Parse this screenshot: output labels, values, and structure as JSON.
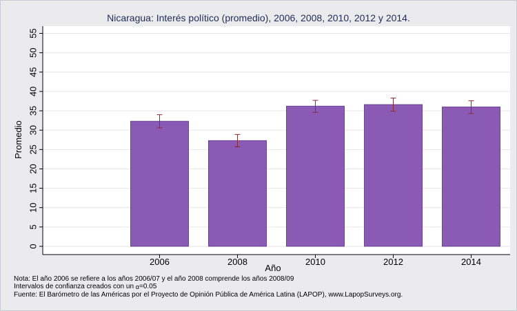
{
  "chart_data": {
    "type": "bar",
    "title": "Nicaragua: Interés político (promedio), 2006, 2008, 2010, 2012 y 2014.",
    "xlabel": "Año",
    "ylabel": "Promedio",
    "categories": [
      "2006",
      "2008",
      "2010",
      "2012",
      "2014"
    ],
    "values": [
      32.3,
      27.3,
      36.2,
      36.6,
      36.0
    ],
    "error_low": [
      30.6,
      25.7,
      34.6,
      34.9,
      34.3
    ],
    "error_high": [
      34.0,
      28.9,
      37.7,
      38.3,
      37.6
    ],
    "ylim": [
      0,
      57
    ],
    "yticks": [
      0,
      5,
      10,
      15,
      20,
      25,
      30,
      35,
      40,
      45,
      50,
      55
    ],
    "grid": true,
    "bar_color": "#8a5ab5",
    "errorbar_color": "#8b2b2b"
  },
  "notes": {
    "line1": "Nota: El año 2006 se refiere a los años 2006/07 y el año 2008 comprende los años 2008/09",
    "line2_prefix": "Intervalos de confianza creados con un ",
    "line2_alpha": "α",
    "line2_suffix": "=0.05",
    "line3": "Fuente: El Barómetro de las Américas por el Proyecto de Opinión Pública de América Latina (LAPOP), www.LapopSurveys.org."
  }
}
